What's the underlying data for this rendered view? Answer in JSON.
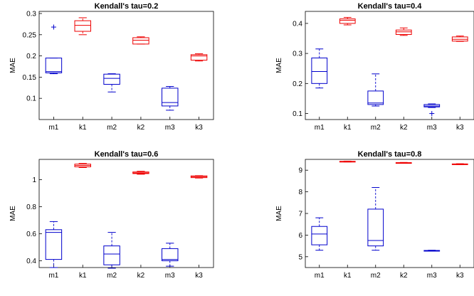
{
  "chart_data": [
    {
      "type": "box",
      "title": "Kendall's tau=0.2",
      "xlabel": "",
      "ylabel": "MAE",
      "ylim": [
        0.05,
        0.305
      ],
      "yticks": [
        0.1,
        0.15,
        0.2,
        0.25,
        0.3
      ],
      "ytick_labels": [
        "0.1",
        "0.15",
        "0.2",
        "0.25",
        "0.3"
      ],
      "categories": [
        "m1",
        "k1",
        "m2",
        "k2",
        "m3",
        "k3"
      ],
      "colors": [
        "#0000cc",
        "#ee0000",
        "#0000cc",
        "#ee0000",
        "#0000cc",
        "#ee0000"
      ],
      "boxes": [
        {
          "min": 0.158,
          "q1": 0.16,
          "median": 0.163,
          "q3": 0.195,
          "max": 0.195,
          "outliers": [
            0.268
          ]
        },
        {
          "min": 0.25,
          "q1": 0.258,
          "median": 0.272,
          "q3": 0.283,
          "max": 0.29,
          "outliers": []
        },
        {
          "min": 0.115,
          "q1": 0.133,
          "median": 0.147,
          "q3": 0.157,
          "max": 0.158,
          "outliers": []
        },
        {
          "min": 0.228,
          "q1": 0.228,
          "median": 0.237,
          "q3": 0.243,
          "max": 0.245,
          "outliers": []
        },
        {
          "min": 0.072,
          "q1": 0.082,
          "median": 0.09,
          "q3": 0.124,
          "max": 0.128,
          "outliers": []
        },
        {
          "min": 0.188,
          "q1": 0.19,
          "median": 0.2,
          "q3": 0.203,
          "max": 0.205,
          "outliers": []
        }
      ]
    },
    {
      "type": "box",
      "title": "Kendall's tau=0.4",
      "xlabel": "",
      "ylabel": "MAE",
      "ylim": [
        0.08,
        0.44
      ],
      "yticks": [
        0.1,
        0.2,
        0.3,
        0.4
      ],
      "ytick_labels": [
        "0.1",
        "0.2",
        "0.3",
        "0.4"
      ],
      "categories": [
        "m1",
        "k1",
        "m2",
        "k2",
        "m3",
        "k3"
      ],
      "colors": [
        "#0000cc",
        "#ee0000",
        "#0000cc",
        "#ee0000",
        "#0000cc",
        "#ee0000"
      ],
      "boxes": [
        {
          "min": 0.185,
          "q1": 0.2,
          "median": 0.24,
          "q3": 0.285,
          "max": 0.315,
          "outliers": []
        },
        {
          "min": 0.395,
          "q1": 0.4,
          "median": 0.41,
          "q3": 0.415,
          "max": 0.42,
          "outliers": []
        },
        {
          "min": 0.125,
          "q1": 0.13,
          "median": 0.135,
          "q3": 0.175,
          "max": 0.232,
          "outliers": []
        },
        {
          "min": 0.36,
          "q1": 0.363,
          "median": 0.372,
          "q3": 0.378,
          "max": 0.385,
          "outliers": []
        },
        {
          "min": 0.12,
          "q1": 0.122,
          "median": 0.125,
          "q3": 0.13,
          "max": 0.132,
          "outliers": [
            0.1
          ]
        },
        {
          "min": 0.34,
          "q1": 0.341,
          "median": 0.347,
          "q3": 0.355,
          "max": 0.358,
          "outliers": []
        }
      ]
    },
    {
      "type": "box",
      "title": "Kendall's tau=0.6",
      "xlabel": "",
      "ylabel": "MAE",
      "ylim": [
        0.35,
        1.15
      ],
      "yticks": [
        0.4,
        0.6,
        0.8,
        1.0
      ],
      "ytick_labels": [
        "0.4",
        "0.6",
        "0.8",
        "1"
      ],
      "categories": [
        "m1",
        "k1",
        "m2",
        "k2",
        "m3",
        "k3"
      ],
      "colors": [
        "#0000cc",
        "#ee0000",
        "#0000cc",
        "#ee0000",
        "#0000cc",
        "#ee0000"
      ],
      "boxes": [
        {
          "min": 0.35,
          "q1": 0.41,
          "median": 0.61,
          "q3": 0.63,
          "max": 0.69,
          "outliers": []
        },
        {
          "min": 1.09,
          "q1": 1.095,
          "median": 1.105,
          "q3": 1.115,
          "max": 1.12,
          "outliers": []
        },
        {
          "min": 0.345,
          "q1": 0.37,
          "median": 0.45,
          "q3": 0.51,
          "max": 0.61,
          "outliers": []
        },
        {
          "min": 1.04,
          "q1": 1.045,
          "median": 1.05,
          "q3": 1.057,
          "max": 1.062,
          "outliers": []
        },
        {
          "min": 0.36,
          "q1": 0.4,
          "median": 0.41,
          "q3": 0.49,
          "max": 0.53,
          "outliers": []
        },
        {
          "min": 1.012,
          "q1": 1.015,
          "median": 1.022,
          "q3": 1.028,
          "max": 1.03,
          "outliers": []
        }
      ]
    },
    {
      "type": "box",
      "title": "Kendall's tau=0.8",
      "xlabel": "",
      "ylabel": "MAE",
      "ylim": [
        4.5,
        9.5
      ],
      "yticks": [
        5,
        6,
        7,
        8,
        9
      ],
      "ytick_labels": [
        "5",
        "6",
        "7",
        "8",
        "9"
      ],
      "categories": [
        "m1",
        "k1",
        "m2",
        "k2",
        "m3",
        "k3"
      ],
      "colors": [
        "#0000cc",
        "#ee0000",
        "#0000cc",
        "#ee0000",
        "#0000cc",
        "#ee0000"
      ],
      "boxes": [
        {
          "min": 5.3,
          "q1": 5.55,
          "median": 6.05,
          "q3": 6.4,
          "max": 6.8,
          "outliers": []
        },
        {
          "min": 9.38,
          "q1": 9.39,
          "median": 9.4,
          "q3": 9.41,
          "max": 9.42,
          "outliers": []
        },
        {
          "min": 5.3,
          "q1": 5.5,
          "median": 5.75,
          "q3": 7.2,
          "max": 8.2,
          "outliers": []
        },
        {
          "min": 9.32,
          "q1": 9.33,
          "median": 9.34,
          "q3": 9.35,
          "max": 9.36,
          "outliers": []
        },
        {
          "min": 5.26,
          "q1": 5.27,
          "median": 5.28,
          "q3": 5.29,
          "max": 5.3,
          "outliers": []
        },
        {
          "min": 9.26,
          "q1": 9.27,
          "median": 9.28,
          "q3": 9.29,
          "max": 9.3,
          "outliers": []
        }
      ]
    }
  ]
}
